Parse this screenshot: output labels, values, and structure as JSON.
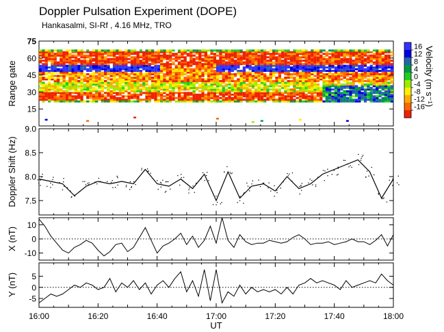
{
  "header": {
    "title": "Doppler Pulsation Experiment (DOPE)",
    "subtitle": "Hankasalmi, SI-Rf , 4.16 MHz, TRO"
  },
  "colorbar": {
    "label": "Velocity (m s⁻¹)",
    "ticks": [
      "16",
      "12",
      "8",
      "4",
      "0",
      "-4",
      "-8",
      "-12",
      "-16"
    ],
    "colors": [
      "#3333ff",
      "#0000dd",
      "#2266aa",
      "#009944",
      "#22cc22",
      "#99ee00",
      "#ffee00",
      "#ffaa00",
      "#ff6600",
      "#ee2200"
    ]
  },
  "chart_data": [
    {
      "type": "heatmap",
      "ylabel": "Range gate",
      "ylim": [
        0,
        75
      ],
      "yticks": [
        "75",
        "60",
        "45",
        "30",
        "15"
      ],
      "ytick_values": [
        75,
        60,
        45,
        30,
        15
      ],
      "x_range": [
        "16:00",
        "18:00"
      ],
      "value_range": [
        -16,
        16
      ],
      "summary_bands": [
        {
          "gates": [
            22,
            30
          ],
          "velocity": -14
        },
        {
          "gates": [
            30,
            38
          ],
          "velocity": -4
        },
        {
          "gates": [
            38,
            47
          ],
          "velocity": -10
        },
        {
          "gates": [
            47,
            54
          ],
          "velocity": 14
        },
        {
          "gates": [
            54,
            66
          ],
          "velocity": -14
        }
      ]
    },
    {
      "type": "scatter",
      "ylabel": "Doppler Shift (Hz)",
      "ylim": [
        7.2,
        9.0
      ],
      "yticks": [
        "9.0",
        "8.5",
        "8.0",
        "7.5"
      ],
      "ytick_values": [
        9.0,
        8.5,
        8.0,
        7.5
      ],
      "x": [
        0,
        4,
        8,
        12,
        16,
        20,
        24,
        28,
        32,
        36,
        40,
        44,
        48,
        52,
        56,
        60,
        64,
        68,
        72,
        76,
        80,
        84,
        88,
        92,
        96,
        100,
        104,
        108,
        112,
        116,
        120
      ],
      "y": [
        7.95,
        7.9,
        7.85,
        7.6,
        7.8,
        7.9,
        7.85,
        7.9,
        7.85,
        8.15,
        7.85,
        7.8,
        7.95,
        7.75,
        8.05,
        7.5,
        8.1,
        7.55,
        7.8,
        7.85,
        7.7,
        8.0,
        7.75,
        7.85,
        8.05,
        8.15,
        8.25,
        8.35,
        8.1,
        7.55,
        7.95
      ]
    },
    {
      "type": "line",
      "ylabel": "X (nT)",
      "ylim": [
        -15,
        15
      ],
      "yticks": [
        "10",
        "0",
        "-10"
      ],
      "ytick_values": [
        10,
        0,
        -10
      ],
      "baseline": 0,
      "x": [
        0,
        2,
        4,
        6,
        8,
        10,
        12,
        14,
        16,
        18,
        20,
        22,
        24,
        26,
        28,
        30,
        32,
        34,
        36,
        38,
        40,
        42,
        44,
        46,
        48,
        50,
        52,
        54,
        56,
        58,
        60,
        62,
        64,
        66,
        68,
        70,
        72,
        74,
        76,
        78,
        80,
        82,
        84,
        86,
        88,
        90,
        92,
        94,
        96,
        98,
        100,
        102,
        104,
        106,
        108,
        110,
        112,
        114,
        116,
        118,
        120
      ],
      "y": [
        14,
        9,
        2,
        -3,
        -8,
        -10,
        -6,
        -4,
        -1,
        -3,
        -8,
        -12,
        -9,
        -4,
        -3,
        -9,
        -6,
        1,
        8,
        -1,
        -10,
        -5,
        -3,
        0,
        4,
        -4,
        2,
        -6,
        -1,
        9,
        -3,
        15,
        -1,
        -6,
        3,
        -2,
        -4,
        -3,
        -3,
        -1,
        -2,
        -3,
        -2,
        1,
        3,
        0,
        -4,
        -3,
        -3,
        -2,
        -4,
        -3,
        -2,
        0,
        -2,
        -2,
        -4,
        -1,
        3,
        -5,
        3
      ]
    },
    {
      "type": "line",
      "ylabel": "Y (nT)",
      "ylim": [
        -9,
        11
      ],
      "yticks": [
        "5",
        "0",
        "-5"
      ],
      "ytick_values": [
        5,
        0,
        -5
      ],
      "baseline": 0,
      "x": [
        0,
        2,
        4,
        6,
        8,
        10,
        12,
        14,
        16,
        18,
        20,
        22,
        24,
        26,
        28,
        30,
        32,
        34,
        36,
        38,
        40,
        42,
        44,
        46,
        48,
        50,
        52,
        54,
        56,
        58,
        60,
        62,
        64,
        66,
        68,
        70,
        72,
        74,
        76,
        78,
        80,
        82,
        84,
        86,
        88,
        90,
        92,
        94,
        96,
        98,
        100,
        102,
        104,
        106,
        108,
        110,
        112,
        114,
        116,
        118,
        120
      ],
      "y": [
        -7,
        -5,
        -3,
        -4,
        -3,
        -1,
        1,
        0,
        2,
        1,
        -1,
        0,
        4,
        -2,
        2,
        0,
        3,
        -1,
        2,
        -3,
        1,
        3,
        0,
        4,
        7,
        -2,
        3,
        -4,
        8,
        -6,
        8,
        -7,
        -2,
        -4,
        1,
        -3,
        0,
        -2,
        -1,
        -2,
        -1,
        -3,
        0,
        -3,
        1,
        2,
        4,
        2,
        3,
        2,
        1,
        -1,
        3,
        0,
        1,
        2,
        3,
        2,
        6,
        3,
        1
      ]
    }
  ],
  "xaxis": {
    "label": "UT",
    "ticks": [
      "16:00",
      "16:20",
      "16:40",
      "17:00",
      "17:20",
      "17:40",
      "18:00"
    ],
    "tick_minutes": [
      0,
      20,
      40,
      60,
      80,
      100,
      120
    ]
  }
}
